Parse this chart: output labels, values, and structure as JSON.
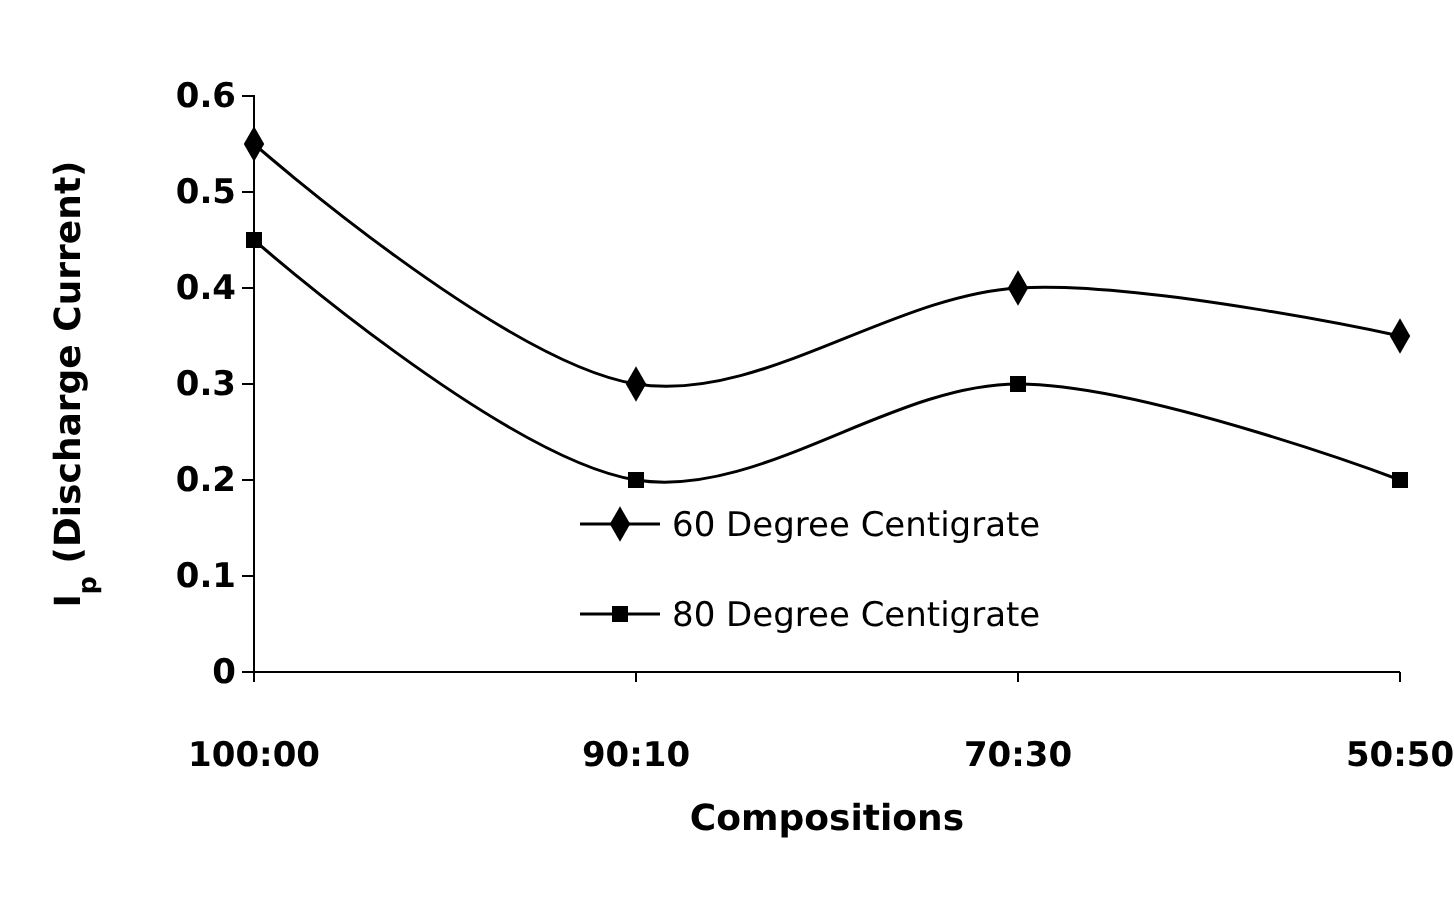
{
  "chart_data": {
    "type": "line",
    "xlabel": "Compositions",
    "ylabel": "I$_{p}$ (Discharge Current)",
    "categories": [
      "100:00",
      "90:10",
      "70:30",
      "50:50"
    ],
    "series": [
      {
        "name": "60 Degree Centigrate",
        "color": "#000000",
        "marker": "diamond",
        "values": [
          0.55,
          0.3,
          0.4,
          0.35
        ]
      },
      {
        "name": "80 Degree Centigrate",
        "color": "#000000",
        "marker": "square",
        "values": [
          0.45,
          0.2,
          0.3,
          0.2
        ]
      }
    ],
    "ylim": [
      0,
      0.6
    ],
    "yticks": [
      0,
      0.1,
      0.2,
      0.3,
      0.4,
      0.5,
      0.6
    ],
    "grid": false,
    "legend": "bottom right",
    "line_style": "solid"
  }
}
